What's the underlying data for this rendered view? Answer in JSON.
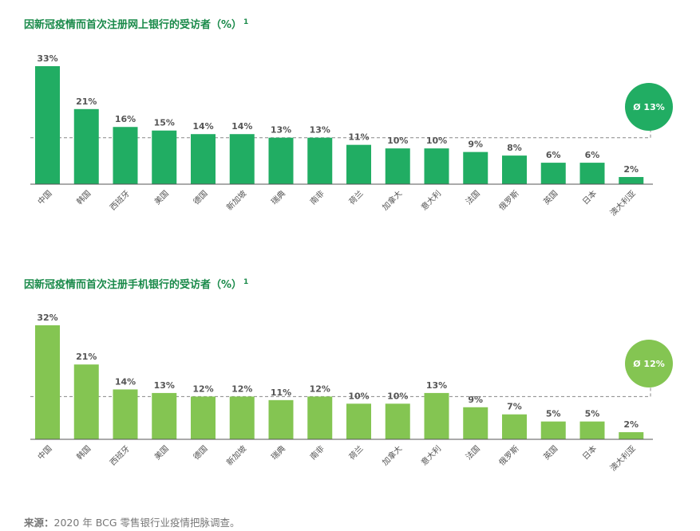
{
  "chart_data": [
    {
      "type": "bar",
      "title": "因新冠疫情而首次注册网上银行的受访者（%）",
      "title_sup": "1",
      "categories": [
        "中国",
        "韩国",
        "西班牙",
        "美国",
        "德国",
        "新加坡",
        "瑞典",
        "南非",
        "荷兰",
        "加拿大",
        "意大利",
        "法国",
        "俄罗斯",
        "英国",
        "日本",
        "澳大利亚"
      ],
      "values": [
        33,
        21,
        16,
        15,
        14,
        14,
        13,
        13,
        11,
        10,
        10,
        9,
        8,
        6,
        6,
        2
      ],
      "value_labels": [
        "33%",
        "21%",
        "16%",
        "15%",
        "14%",
        "14%",
        "13%",
        "13%",
        "11%",
        "10%",
        "10%",
        "9%",
        "8%",
        "6%",
        "6%",
        "2%"
      ],
      "average": 13,
      "average_label": "Ø 13%",
      "ylim": [
        0,
        33
      ],
      "grid": false,
      "color": "#21ad63",
      "average_badge_color": "#21ad63"
    },
    {
      "type": "bar",
      "title": "因新冠疫情而首次注册手机银行的受访者（%）",
      "title_sup": "1",
      "categories": [
        "中国",
        "韩国",
        "西班牙",
        "美国",
        "德国",
        "新加坡",
        "瑞典",
        "南非",
        "荷兰",
        "加拿大",
        "意大利",
        "法国",
        "俄罗斯",
        "英国",
        "日本",
        "澳大利亚"
      ],
      "values": [
        32,
        21,
        14,
        13,
        12,
        12,
        11,
        12,
        10,
        10,
        13,
        9,
        7,
        5,
        5,
        2
      ],
      "value_labels": [
        "32%",
        "21%",
        "14%",
        "13%",
        "12%",
        "12%",
        "11%",
        "12%",
        "10%",
        "10%",
        "13%",
        "9%",
        "7%",
        "5%",
        "5%",
        "2%"
      ],
      "average": 12,
      "average_label": "Ø 12%",
      "ylim": [
        0,
        32
      ],
      "grid": false,
      "color": "#84c552",
      "average_badge_color": "#84c552"
    }
  ],
  "source": {
    "label": "来源：",
    "text": "2020 年 BCG 零售银行业疫情把脉调查。"
  }
}
